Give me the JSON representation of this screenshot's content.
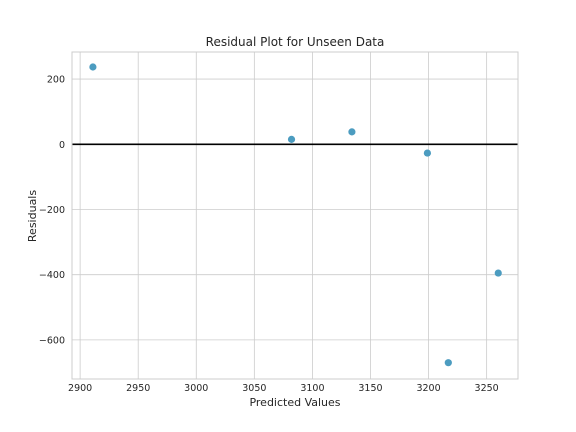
{
  "chart_data": {
    "type": "scatter",
    "title": "Residual Plot for Unseen Data",
    "xlabel": "Predicted Values",
    "ylabel": "Residuals",
    "xlim": [
      2893,
      3277
    ],
    "ylim": [
      -720,
      283
    ],
    "xticks": [
      2900,
      2950,
      3000,
      3050,
      3100,
      3150,
      3200,
      3250
    ],
    "yticks": [
      200,
      0,
      -200,
      -400,
      -600
    ],
    "ytick_labels": [
      "200",
      "0",
      "−200",
      "−400",
      "−600"
    ],
    "grid": true,
    "reference_line": 0,
    "point_color": "#4c9cc0",
    "reference_line_color": "#000000",
    "points": [
      {
        "x": 2911,
        "y": 237
      },
      {
        "x": 3082,
        "y": 15
      },
      {
        "x": 3134,
        "y": 38
      },
      {
        "x": 3199,
        "y": -27
      },
      {
        "x": 3217,
        "y": -670
      },
      {
        "x": 3260,
        "y": -395
      }
    ]
  }
}
